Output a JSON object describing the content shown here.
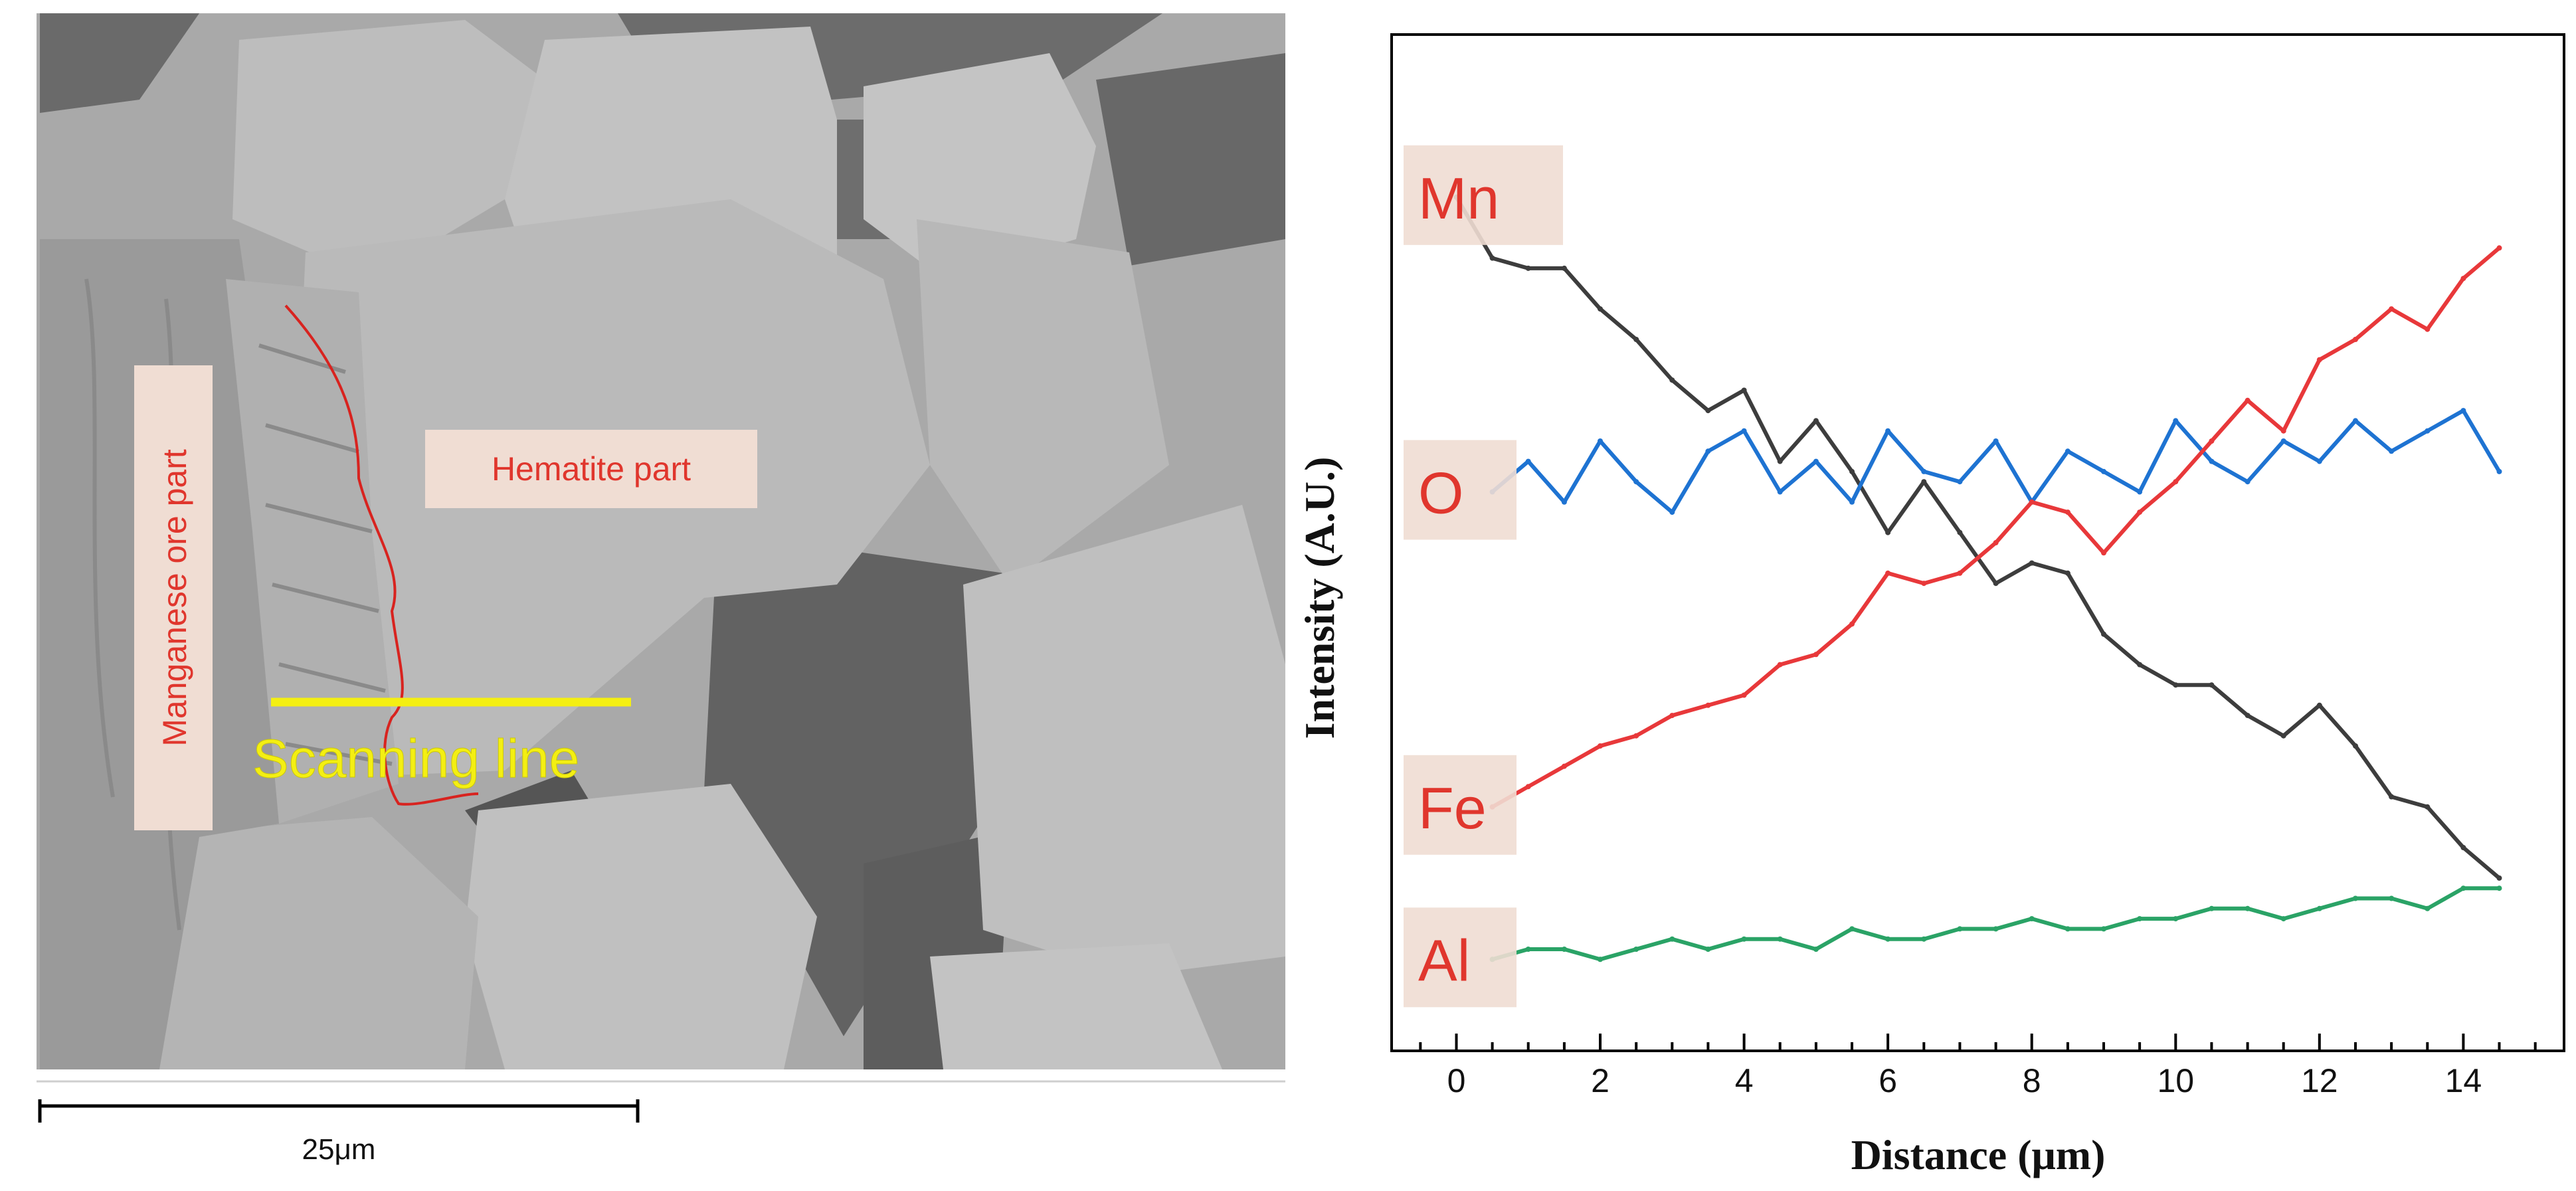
{
  "sem_panel": {
    "labels": {
      "manganese": "Manganese ore part",
      "hematite": "Hematite part",
      "scan_line": "Scanning line"
    },
    "scale_bar": {
      "label": "25μm"
    },
    "colors": {
      "background": "#a7a7a7",
      "grain": "#bdbdbd",
      "pore": "#5f5f5f",
      "label_box": "#f0ddd3",
      "label_text": "#e0362d",
      "scan_line": "#f4ef12",
      "boundary": "#d8231f"
    }
  },
  "chart_data": {
    "type": "line",
    "title": "",
    "xlabel": "Distance (μm)",
    "ylabel": "Intensity (A.U.)",
    "xlim": [
      -0.9,
      15.4
    ],
    "ylim": [
      0,
      100
    ],
    "x_ticks": [
      "0",
      "2",
      "4",
      "6",
      "8",
      "10",
      "12",
      "14"
    ],
    "x_tick_values": [
      0,
      2,
      4,
      6,
      8,
      10,
      12,
      14
    ],
    "legend_placement": "inline labels at left",
    "grid": false,
    "series": [
      {
        "name": "Mn",
        "color": "#3d3d3d",
        "x": [
          0,
          0.5,
          1,
          1.5,
          2,
          2.5,
          3,
          3.5,
          4,
          4.5,
          5,
          5.5,
          6,
          6.5,
          7,
          7.5,
          8,
          8.5,
          9,
          9.5,
          10,
          10.5,
          11,
          11.5,
          12,
          12.5,
          13,
          13.5,
          14,
          14.5
        ],
        "values": [
          84,
          78,
          77,
          77,
          73,
          70,
          66,
          63,
          65,
          58,
          62,
          57,
          51,
          56,
          51,
          46,
          48,
          47,
          41,
          38,
          36,
          36,
          33,
          31,
          34,
          30,
          25,
          24,
          20,
          17
        ]
      },
      {
        "name": "O",
        "color": "#1e73d2",
        "x": [
          0.5,
          1,
          1.5,
          2,
          2.5,
          3,
          3.5,
          4,
          4.5,
          5,
          5.5,
          6,
          6.5,
          7,
          7.5,
          8,
          8.5,
          9,
          9.5,
          10,
          10.5,
          11,
          11.5,
          12,
          12.5,
          13,
          13.5,
          14,
          14.5
        ],
        "values": [
          55,
          58,
          54,
          60,
          56,
          53,
          59,
          61,
          55,
          58,
          54,
          61,
          57,
          56,
          60,
          54,
          59,
          57,
          55,
          62,
          58,
          56,
          60,
          58,
          62,
          59,
          61,
          63,
          57
        ]
      },
      {
        "name": "Fe",
        "color": "#e8383a",
        "x": [
          0.5,
          1,
          1.5,
          2,
          2.5,
          3,
          3.5,
          4,
          4.5,
          5,
          5.5,
          6,
          6.5,
          7,
          7.5,
          8,
          8.5,
          9,
          9.5,
          10,
          10.5,
          11,
          11.5,
          12,
          12.5,
          13,
          13.5,
          14,
          14.5
        ],
        "values": [
          24,
          26,
          28,
          30,
          31,
          33,
          34,
          35,
          38,
          39,
          42,
          47,
          46,
          47,
          50,
          54,
          53,
          49,
          53,
          56,
          60,
          64,
          61,
          68,
          70,
          73,
          71,
          76,
          79
        ]
      },
      {
        "name": "Al",
        "color": "#2aa366",
        "x": [
          0.5,
          1,
          1.5,
          2,
          2.5,
          3,
          3.5,
          4,
          4.5,
          5,
          5.5,
          6,
          6.5,
          7,
          7.5,
          8,
          8.5,
          9,
          9.5,
          10,
          10.5,
          11,
          11.5,
          12,
          12.5,
          13,
          13.5,
          14,
          14.5
        ],
        "values": [
          9,
          10,
          10,
          9,
          10,
          11,
          10,
          11,
          11,
          10,
          12,
          11,
          11,
          12,
          12,
          13,
          12,
          12,
          13,
          13,
          14,
          14,
          13,
          14,
          15,
          15,
          14,
          16,
          16
        ]
      }
    ],
    "inline_labels": [
      "Mn",
      "O",
      "Fe",
      "Al"
    ]
  }
}
